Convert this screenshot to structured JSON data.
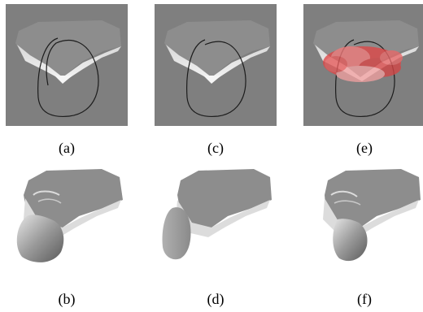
{
  "figure": {
    "panels": [
      {
        "id": "a",
        "caption": "(a)"
      },
      {
        "id": "c",
        "caption": "(c)"
      },
      {
        "id": "e",
        "caption": "(e)"
      },
      {
        "id": "b",
        "caption": "(b)"
      },
      {
        "id": "d",
        "caption": "(d)"
      },
      {
        "id": "f",
        "caption": "(f)"
      }
    ],
    "colors": {
      "top_background": "#7f7f7f",
      "surface": "#8d8d8d",
      "highlight": "#e04646"
    }
  }
}
